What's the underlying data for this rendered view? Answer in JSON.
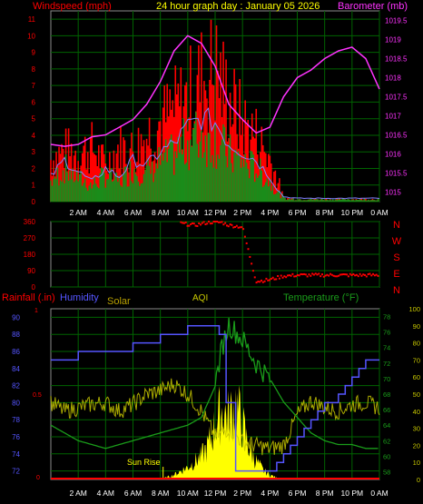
{
  "header": {
    "left_label": "Windspeed (mph)",
    "title": "24 hour graph day : January 05 2026",
    "right_label": "Barometer (mb)"
  },
  "colors": {
    "wind": "#ff0000",
    "gust": "#ff0000",
    "avg_wind": "#1a8c1a",
    "baro": "#ff33ff",
    "dir": "#ff0000",
    "rain": "#ff0000",
    "humidity": "#5555ff",
    "solar": "#ffff00",
    "solar_label": "#b8a000",
    "aqi": "#c8c800",
    "temperature": "#1a9c1a",
    "grid": "#006400",
    "tick": "#ffffff"
  },
  "x_ticks": [
    "2 AM",
    "4 AM",
    "6 AM",
    "8 AM",
    "10 AM",
    "12 PM",
    "2 PM",
    "4 PM",
    "6 PM",
    "8 PM",
    "10 PM",
    "0 AM"
  ],
  "chart_data": [
    {
      "type": "line",
      "name": "wind",
      "ylabel": "Windspeed (mph)",
      "ylabel_right": "Barometer (mb)",
      "y_ticks": [
        "0",
        "1",
        "2",
        "3",
        "4",
        "5",
        "6",
        "7",
        "8",
        "9",
        "10",
        "11"
      ],
      "ylim": [
        0,
        11.5
      ],
      "y2_ticks": [
        "1015",
        "1015.5",
        "1016",
        "1016.5",
        "1017",
        "1017.5",
        "1018",
        "1018.5",
        "1019",
        "1019.5"
      ],
      "y2lim": [
        1014.75,
        1019.75
      ],
      "series": [
        {
          "name": "Windspeed (mph)",
          "x": [
            0,
            1,
            2,
            3,
            4,
            5,
            6,
            7,
            8,
            9,
            10,
            11,
            12,
            13,
            14,
            15,
            16,
            16.5,
            17,
            18,
            19,
            20,
            21,
            22,
            23,
            24
          ],
          "values": [
            1.5,
            2.5,
            1.8,
            1.2,
            2,
            1.5,
            2.5,
            2.2,
            3,
            3.5,
            4.5,
            5,
            4.8,
            3.5,
            3,
            2.5,
            1.5,
            0.8,
            0.3,
            0.2,
            0.2,
            0.2,
            0.2,
            0.2,
            0.2,
            0.2
          ]
        },
        {
          "name": "Gust",
          "x": [
            0,
            1,
            2,
            3,
            4,
            5,
            6,
            7,
            8,
            9,
            10,
            11,
            12,
            13,
            14,
            15,
            16,
            16.5,
            17,
            18,
            19,
            20,
            21,
            22,
            23,
            24
          ],
          "values": [
            3.5,
            4.2,
            4,
            4.5,
            3,
            4.5,
            4.2,
            5.5,
            6.5,
            7.5,
            8.5,
            10,
            11,
            8.5,
            6.5,
            5.5,
            3.5,
            2,
            0.3,
            0.2,
            0.2,
            0.2,
            0.2,
            0.2,
            0.2,
            0.2
          ]
        },
        {
          "name": "Barometer (mb)",
          "x": [
            0,
            1,
            2,
            3,
            4,
            5,
            6,
            7,
            8,
            9,
            10,
            11,
            12,
            13,
            14,
            15,
            16,
            17,
            18,
            19,
            20,
            21,
            22,
            23,
            24
          ],
          "values": [
            1016.25,
            1016.2,
            1016.25,
            1016.45,
            1016.5,
            1016.7,
            1016.9,
            1017.3,
            1017.9,
            1018.7,
            1019.1,
            1018.9,
            1018.3,
            1017.3,
            1016.9,
            1016.55,
            1016.7,
            1017.5,
            1018.0,
            1018.2,
            1018.5,
            1018.7,
            1018.8,
            1018.5,
            1017.7
          ]
        }
      ]
    },
    {
      "type": "scatter",
      "name": "wind_direction",
      "y_ticks": [
        "0",
        "90",
        "180",
        "270",
        "360"
      ],
      "ylim": [
        0,
        360
      ],
      "compass": [
        "N",
        "W",
        "S",
        "E",
        "N"
      ],
      "series": [
        {
          "name": "Direction",
          "x": [
            9.5,
            10,
            10.5,
            11,
            11.5,
            12,
            12.5,
            13,
            13.5,
            14,
            15,
            16,
            17,
            18,
            19,
            20,
            21,
            22,
            23,
            24
          ],
          "values": [
            350,
            345,
            340,
            348,
            355,
            358,
            355,
            340,
            335,
            330,
            30,
            40,
            60,
            65,
            65,
            65,
            65,
            65,
            65,
            65
          ]
        }
      ]
    },
    {
      "type": "line",
      "name": "weather",
      "ylabel_left": "Rainfall (.in)",
      "labels": [
        "Humidity",
        "Solar",
        "AQI",
        "Temperature (°F)"
      ],
      "rain_ticks": [
        "0",
        "0.5",
        "1"
      ],
      "humidity_ticks": [
        "72",
        "74",
        "76",
        "78",
        "80",
        "82",
        "84",
        "86",
        "88",
        "90"
      ],
      "humidity_lim": [
        71,
        91
      ],
      "temp_ticks": [
        "58",
        "60",
        "62",
        "64",
        "66",
        "68",
        "70",
        "72",
        "74",
        "76",
        "78"
      ],
      "temp_lim": [
        57,
        79
      ],
      "aqi_ticks": [
        "0",
        "10",
        "20",
        "30",
        "40",
        "50",
        "60",
        "70",
        "80",
        "90",
        "100"
      ],
      "aqi_lim": [
        0,
        100
      ],
      "annotation": "Sun Rise",
      "series": [
        {
          "name": "Humidity",
          "x": [
            0,
            1,
            2,
            3,
            4,
            5,
            6,
            7,
            8,
            9,
            10,
            11,
            12,
            12.3,
            12.8,
            13.5,
            15,
            16,
            16.5,
            17,
            17.5,
            18,
            18.5,
            19,
            19.5,
            20,
            21,
            21.5,
            22,
            22.5,
            23,
            24
          ],
          "values": [
            85,
            85,
            86,
            86,
            86,
            86,
            87,
            87,
            88,
            88,
            89,
            89,
            89,
            88,
            80,
            72,
            72,
            72,
            73,
            74,
            75,
            76,
            77,
            78,
            79,
            80,
            81,
            82,
            83,
            84,
            85,
            85
          ]
        },
        {
          "name": "Temperature (°F)",
          "x": [
            0,
            1,
            2,
            3,
            4,
            5,
            6,
            7,
            8,
            9,
            10,
            11,
            12,
            12.5,
            13,
            14,
            15,
            16,
            17,
            18,
            19,
            20,
            21,
            22,
            23,
            24
          ],
          "values": [
            64,
            63,
            62,
            61.5,
            61,
            61.5,
            62,
            62.5,
            63,
            63.5,
            64,
            65,
            69,
            74,
            77,
            75,
            72,
            70,
            67,
            65,
            63,
            62,
            61.5,
            61.5,
            61,
            61
          ]
        },
        {
          "name": "AQI",
          "x": [
            0,
            1,
            2,
            3,
            4,
            5,
            6,
            7,
            8,
            9,
            10,
            11,
            12,
            13,
            14,
            15,
            16,
            17,
            18,
            19,
            20,
            21,
            22,
            23,
            24
          ],
          "values": [
            45,
            40,
            42,
            44,
            45,
            40,
            44,
            50,
            52,
            56,
            50,
            40,
            25,
            30,
            22,
            20,
            18,
            20,
            38,
            46,
            42,
            40,
            44,
            45,
            42
          ]
        },
        {
          "name": "Solar",
          "x": [
            8,
            9,
            10,
            11,
            11.5,
            12,
            12.5,
            13,
            13.5,
            14,
            14.5,
            15,
            15.5,
            16,
            16.5,
            17
          ],
          "values": [
            0,
            3,
            8,
            15,
            22,
            35,
            45,
            40,
            50,
            35,
            20,
            12,
            6,
            3,
            1,
            0
          ]
        },
        {
          "name": "Rainfall (.in)",
          "x": [
            0,
            24
          ],
          "values": [
            0,
            0
          ]
        }
      ]
    }
  ]
}
